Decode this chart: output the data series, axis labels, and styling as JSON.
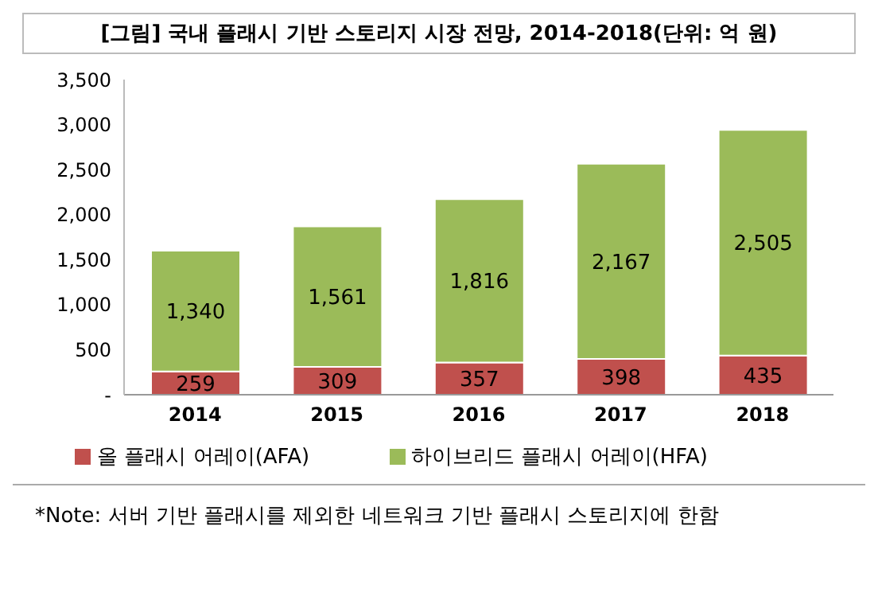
{
  "chart_data": {
    "type": "bar",
    "title": "[그림] 국내 플래시 기반 스토리지 시장 전망, 2014-2018(단위: 억 원)",
    "categories": [
      "2014",
      "2015",
      "2016",
      "2017",
      "2018"
    ],
    "series": [
      {
        "name": "올 플래시 어레이(AFA)",
        "color": "#c0504d",
        "values": [
          259,
          309,
          357,
          398,
          435
        ],
        "value_labels": [
          "259",
          "309",
          "357",
          "398",
          "435"
        ]
      },
      {
        "name": "하이브리드 플래시 어레이(HFA)",
        "color": "#9bbb59",
        "values": [
          1340,
          1561,
          1816,
          2167,
          2505
        ],
        "value_labels": [
          "1,340",
          "1,561",
          "1,816",
          "2,167",
          "2,505"
        ]
      }
    ],
    "stacked": true,
    "grid": false,
    "legend": "bottom",
    "ylim": [
      0,
      3500
    ],
    "yticks": [
      {
        "value": 0,
        "label": "-"
      },
      500,
      {
        "value": 1000,
        "label": "1,000"
      },
      {
        "value": 1500,
        "label": "1,500"
      },
      {
        "value": 2000,
        "label": "2,000"
      },
      {
        "value": 2500,
        "label": "2,500"
      },
      {
        "value": 3000,
        "label": "3,000"
      },
      {
        "value": 3500,
        "label": "3,500"
      }
    ],
    "annotations": [
      "*Note: 서버 기반 플래시를 제외한 네트워크 기반 플래시 스토리지에 한함"
    ]
  }
}
